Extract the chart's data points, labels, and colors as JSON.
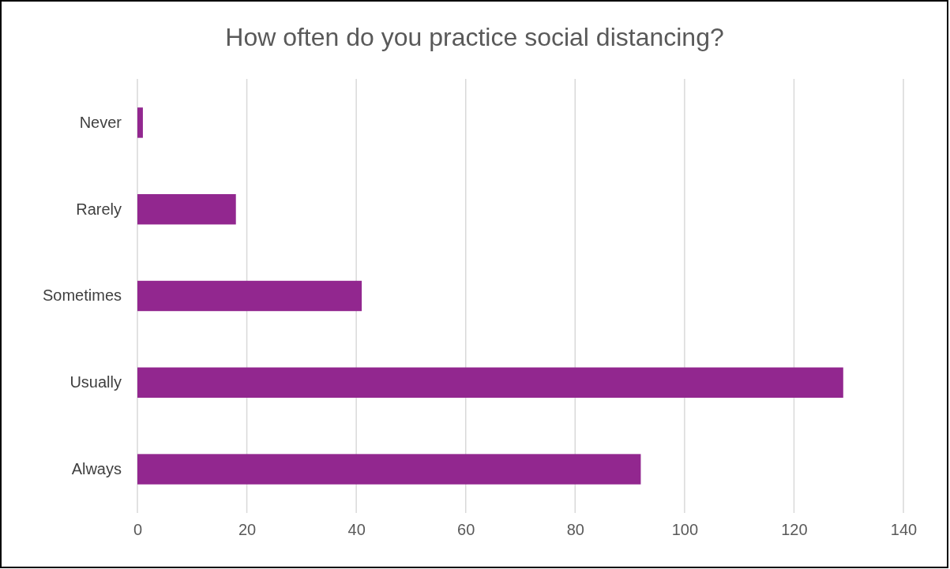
{
  "chart_data": {
    "type": "bar",
    "orientation": "horizontal",
    "title": "How often do you practice social distancing?",
    "categories": [
      "Never",
      "Rarely",
      "Sometimes",
      "Usually",
      "Always"
    ],
    "values": [
      1,
      18,
      41,
      129,
      92
    ],
    "color": "#92278f",
    "xlim": [
      0,
      140
    ],
    "xticks": [
      0,
      20,
      40,
      60,
      80,
      100,
      120,
      140
    ],
    "grid": "x"
  }
}
